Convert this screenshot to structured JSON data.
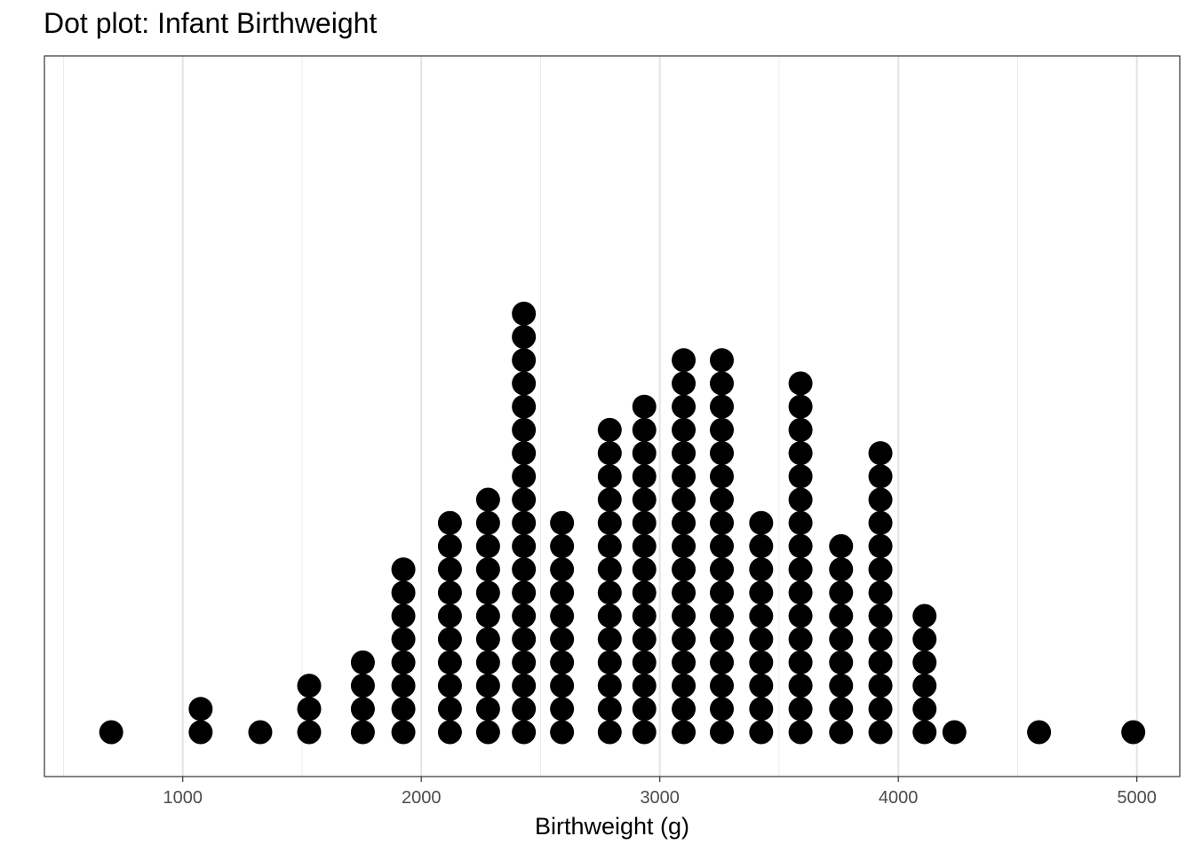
{
  "chart_data": {
    "type": "scatter",
    "subtype": "dot plot",
    "title": "Dot plot: Infant Birthweight",
    "xlabel": "Birthweight (g)",
    "ylabel": "",
    "xlim": [
      420,
      5180
    ],
    "x_ticks": [
      1000,
      2000,
      3000,
      4000,
      5000
    ],
    "x_tick_labels": [
      "1000",
      "2000",
      "3000",
      "4000",
      "5000"
    ],
    "grid": true,
    "legend": "none",
    "dot_color": "#000000",
    "bins": [
      {
        "x": 700,
        "count": 1
      },
      {
        "x": 1075,
        "count": 2
      },
      {
        "x": 1325,
        "count": 1
      },
      {
        "x": 1530,
        "count": 3
      },
      {
        "x": 1755,
        "count": 4
      },
      {
        "x": 1925,
        "count": 8
      },
      {
        "x": 2120,
        "count": 10
      },
      {
        "x": 2280,
        "count": 11
      },
      {
        "x": 2430,
        "count": 19
      },
      {
        "x": 2590,
        "count": 10
      },
      {
        "x": 2790,
        "count": 14
      },
      {
        "x": 2935,
        "count": 15
      },
      {
        "x": 3100,
        "count": 17
      },
      {
        "x": 3260,
        "count": 17
      },
      {
        "x": 3425,
        "count": 10
      },
      {
        "x": 3590,
        "count": 16
      },
      {
        "x": 3760,
        "count": 9
      },
      {
        "x": 3925,
        "count": 13
      },
      {
        "x": 4110,
        "count": 6
      },
      {
        "x": 4235,
        "count": 1
      },
      {
        "x": 4590,
        "count": 1
      },
      {
        "x": 4985,
        "count": 1
      }
    ]
  }
}
